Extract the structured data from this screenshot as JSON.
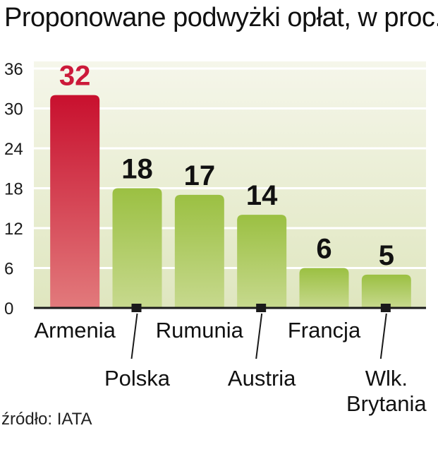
{
  "title": "Proponowane podwyżki opłat, w proc.",
  "source": "źródło: IATA",
  "colors": {
    "highlight": "#cc1a3a",
    "bar": "#9bc042",
    "axis": "#1a1a1a",
    "background_top": "#dfe6bf",
    "background_bottom": "#f4f5e6"
  },
  "chart_data": {
    "type": "bar",
    "title": "Proponowane podwyżki opłat, w proc.",
    "categories": [
      "Armenia",
      "Polska",
      "Rumunia",
      "Austria",
      "Francja",
      "Wlk. Brytania"
    ],
    "values": [
      32,
      18,
      17,
      14,
      6,
      5
    ],
    "data_labels": [
      "32",
      "18",
      "17",
      "14",
      "6",
      "5"
    ],
    "highlighted": [
      "Armenia"
    ],
    "yticks": [
      0,
      6,
      12,
      18,
      24,
      30,
      36
    ],
    "ylim": [
      0,
      36
    ],
    "grid": true,
    "xlabel": "",
    "ylabel": ""
  }
}
